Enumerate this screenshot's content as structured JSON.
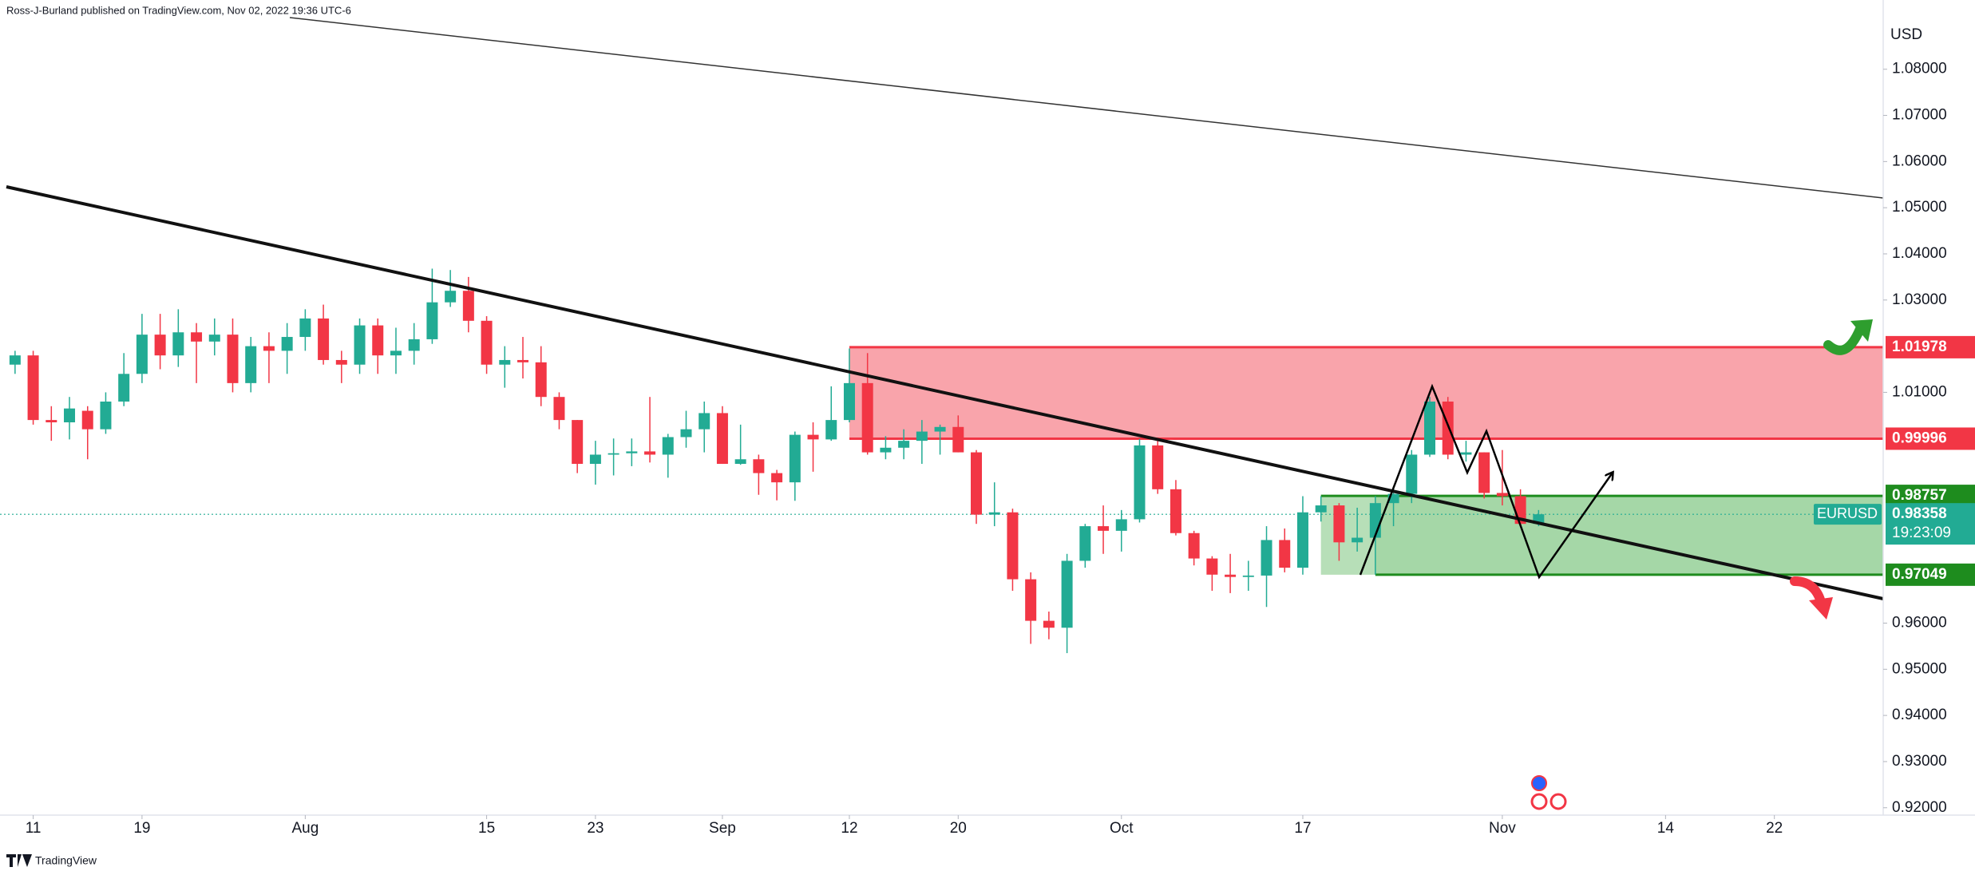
{
  "header": "Ross-J-Burland published on TradingView.com, Nov 02, 2022 19:36 UTC-6",
  "footer": "TradingView",
  "chart_data": {
    "type": "candlestick",
    "symbol": "EURUSD",
    "currency": "USD",
    "up_color": "#22ab94",
    "down_color": "#f23645",
    "grid": false,
    "open": [
      1.016,
      1.018,
      1.004,
      1.0035,
      1.006,
      1.002,
      1.008,
      1.014,
      1.0225,
      1.018,
      1.023,
      1.021,
      1.0225,
      1.012,
      1.02,
      1.019,
      1.022,
      1.026,
      1.017,
      1.016,
      1.0245,
      1.018,
      1.019,
      1.0215,
      1.0295,
      1.032,
      1.0255,
      1.016,
      1.017,
      1.0165,
      1.009,
      1.004,
      0.9945,
      0.9965,
      0.9968,
      0.9972,
      0.9965,
      1.0003,
      1.002,
      1.0055,
      0.9945,
      0.9955,
      0.9925,
      0.9905,
      1.0008,
      0.9998,
      1.004,
      1.012,
      0.997,
      0.998,
      0.9995,
      1.0015,
      1.0025,
      0.997,
      0.9835,
      0.984,
      0.9695,
      0.9605,
      0.959,
      0.9735,
      0.981,
      0.98,
      0.9825,
      0.9985,
      0.989,
      0.9795,
      0.974,
      0.9705,
      0.97,
      0.9703,
      0.978,
      0.972,
      0.984,
      0.9855,
      0.9775,
      0.9785,
      0.986,
      0.988,
      0.9965,
      1.008,
      0.9965,
      0.997,
      0.9882,
      0.9875,
      0.9815
    ],
    "high": [
      1.019,
      1.019,
      1.007,
      1.009,
      1.007,
      1.01,
      1.0185,
      1.027,
      1.027,
      1.028,
      1.025,
      1.026,
      1.026,
      1.022,
      1.023,
      1.025,
      1.028,
      1.029,
      1.019,
      1.026,
      1.026,
      1.024,
      1.025,
      1.0368,
      1.0365,
      1.035,
      1.0265,
      1.02,
      1.022,
      1.02,
      1.01,
      1.004,
      0.9995,
      1.0,
      1.0,
      1.009,
      1.001,
      1.006,
      1.008,
      1.007,
      1.003,
      0.9965,
      0.9932,
      1.0015,
      1.0035,
      1.0113,
      1.0195,
      1.0185,
      1.0005,
      1.002,
      1.004,
      1.003,
      1.005,
      0.9975,
      0.9905,
      0.9848,
      0.971,
      0.9625,
      0.975,
      0.9815,
      0.9855,
      0.9845,
      0.9999,
      0.9995,
      0.991,
      0.98,
      0.9745,
      0.975,
      0.9735,
      0.981,
      0.9805,
      0.9875,
      0.9875,
      0.986,
      0.985,
      0.9875,
      0.9895,
      0.9975,
      1.009,
      1.009,
      0.9995,
      0.997,
      0.9975,
      0.989,
      0.9845
    ],
    "low": [
      1.014,
      1.003,
      0.9995,
      0.9998,
      0.9955,
      1.001,
      1.007,
      1.012,
      1.015,
      1.0155,
      1.012,
      1.018,
      1.01,
      1.01,
      1.012,
      1.014,
      1.019,
      1.016,
      1.012,
      1.014,
      1.014,
      1.014,
      1.016,
      1.0205,
      1.0285,
      1.023,
      1.014,
      1.011,
      1.013,
      1.007,
      1.002,
      0.9925,
      0.99,
      0.992,
      0.994,
      0.9948,
      0.9915,
      0.998,
      0.997,
      0.9945,
      0.9943,
      0.9878,
      0.9866,
      0.9865,
      0.9928,
      0.9995,
      1.0035,
      0.9965,
      0.9955,
      0.9955,
      0.9945,
      0.9965,
      0.997,
      0.9815,
      0.981,
      0.967,
      0.9555,
      0.9565,
      0.9535,
      0.972,
      0.975,
      0.9755,
      0.9818,
      0.988,
      0.979,
      0.9725,
      0.967,
      0.9665,
      0.967,
      0.9635,
      0.971,
      0.9705,
      0.982,
      0.9735,
      0.9755,
      0.9705,
      0.981,
      0.986,
      0.996,
      0.9955,
      0.995,
      0.987,
      0.9855,
      0.981,
      0.981
    ],
    "close": [
      1.018,
      1.004,
      1.0035,
      1.0065,
      1.002,
      1.008,
      1.014,
      1.0225,
      1.018,
      1.023,
      1.021,
      1.0225,
      1.012,
      1.02,
      1.019,
      1.022,
      1.026,
      1.017,
      1.016,
      1.0245,
      1.018,
      1.019,
      1.0215,
      1.0295,
      1.032,
      1.0255,
      1.016,
      1.017,
      1.0165,
      1.009,
      1.004,
      0.9945,
      0.9965,
      0.9968,
      0.9972,
      0.9965,
      1.0003,
      1.002,
      1.0055,
      0.9945,
      0.9955,
      0.9925,
      0.9905,
      1.0008,
      0.9998,
      1.004,
      1.012,
      0.997,
      0.998,
      0.9995,
      1.0015,
      1.0025,
      0.997,
      0.9835,
      0.984,
      0.9695,
      0.9605,
      0.959,
      0.9735,
      0.981,
      0.98,
      0.9825,
      0.9985,
      0.989,
      0.9795,
      0.974,
      0.9705,
      0.97,
      0.9703,
      0.978,
      0.972,
      0.984,
      0.9855,
      0.9775,
      0.9785,
      0.986,
      0.988,
      0.9965,
      1.008,
      0.9965,
      0.997,
      0.9882,
      0.9875,
      0.9815,
      0.98358
    ],
    "countdown": "19:23:09",
    "last_color": "#22ab94",
    "levels": [
      {
        "value": 1.01978,
        "color": "#f23645"
      },
      {
        "value": 0.99996,
        "color": "#f23645"
      },
      {
        "value": 0.98757,
        "color": "#1e8c1e"
      },
      {
        "value": 0.97049,
        "color": "#1e8c1e"
      }
    ],
    "xlim": [
      -0.83,
      103
    ],
    "xticks": [
      {
        "value": 1,
        "label": "11"
      },
      {
        "value": 7,
        "label": "19"
      },
      {
        "value": 16,
        "label": "Aug"
      },
      {
        "value": 26,
        "label": "15"
      },
      {
        "value": 32,
        "label": "23"
      },
      {
        "value": 39,
        "label": "Sep"
      },
      {
        "value": 46,
        "label": "12"
      },
      {
        "value": 52,
        "label": "20"
      },
      {
        "value": 61,
        "label": "Oct"
      },
      {
        "value": 71,
        "label": "17"
      },
      {
        "value": 82,
        "label": "Nov"
      },
      {
        "value": 91,
        "label": "14"
      },
      {
        "value": 97,
        "label": "22"
      }
    ],
    "ylim": [
      0.9184,
      1.095
    ],
    "yticks": [
      {
        "value": 1.08,
        "label": "1.08000"
      },
      {
        "value": 1.07,
        "label": "1.07000"
      },
      {
        "value": 1.06,
        "label": "1.06000"
      },
      {
        "value": 1.05,
        "label": "1.05000"
      },
      {
        "value": 1.04,
        "label": "1.04000"
      },
      {
        "value": 1.03,
        "label": "1.03000"
      },
      {
        "value": 1.01,
        "label": "1.01000"
      },
      {
        "value": 0.96,
        "label": "0.96000"
      },
      {
        "value": 0.95,
        "label": "0.95000"
      },
      {
        "value": 0.94,
        "label": "0.94000"
      },
      {
        "value": 0.93,
        "label": "0.93000"
      },
      {
        "value": 0.92,
        "label": "0.92000"
      }
    ]
  }
}
